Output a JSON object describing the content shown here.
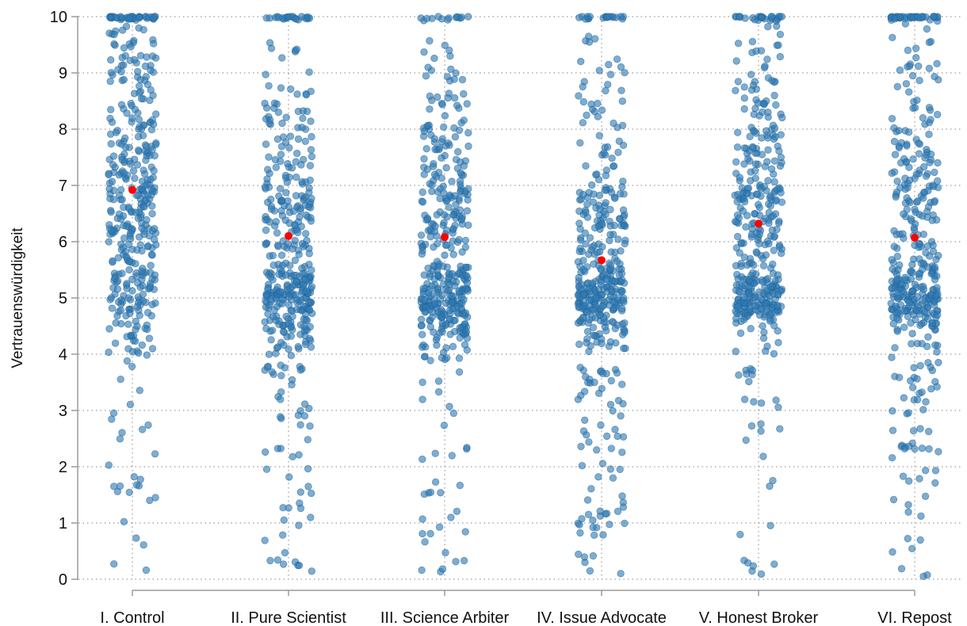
{
  "chart_data": {
    "type": "scatter",
    "style": "jittered strip plot with group means",
    "ylabel": "Vertrauenswürdigkeit",
    "xlabel": "",
    "categories": [
      "I. Control",
      "II. Pure Scientist",
      "III. Science Arbiter",
      "IV. Issue Advocate",
      "V. Honest Broker",
      "VI. Repost"
    ],
    "y_ticks": [
      "0",
      "1",
      "2",
      "3",
      "4",
      "5",
      "6",
      "7",
      "8",
      "9",
      "10"
    ],
    "ylim": [
      0,
      10
    ],
    "grid": "dotted horizontal and vertical gridlines",
    "point_color": "#2f7ab5",
    "mean_color": "#ff0000",
    "means": [
      6.92,
      6.1,
      6.08,
      5.67,
      6.32,
      6.07
    ],
    "distribution_note": "approx. 400-450 responses per condition, values concentrated between 4 and 10 with clusters at 5 and 10",
    "approx_points_per_group": 420
  }
}
